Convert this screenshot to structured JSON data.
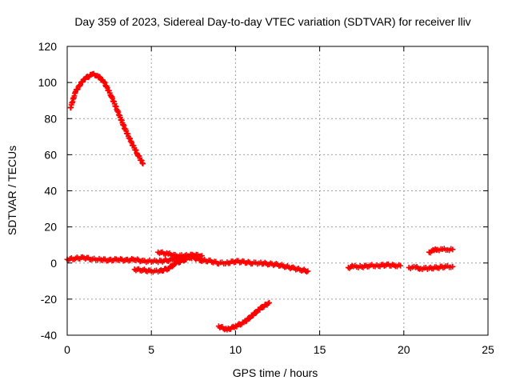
{
  "chart_data": {
    "type": "scatter",
    "title": "Day 359 of 2023, Sidereal Day-to-day VTEC variation (SDTVAR) for receiver lliv",
    "xlabel": "GPS time / hours",
    "ylabel": "SDTVAR / TECUs",
    "xlim": [
      0,
      25
    ],
    "ylim": [
      -40,
      120
    ],
    "xticks": [
      "0",
      "5",
      "10",
      "15",
      "20",
      "25"
    ],
    "yticks": [
      "-40",
      "-20",
      "0",
      "20",
      "40",
      "60",
      "80",
      "100",
      "120"
    ],
    "grid": true,
    "marker": "plus",
    "color": "#ff0000",
    "series": [
      {
        "x": [
          0.2,
          0.5,
          1.0,
          1.5,
          1.8,
          2.2,
          2.6,
          3.0,
          3.4,
          3.8,
          4.2,
          4.5
        ],
        "y": [
          86,
          95,
          102,
          104.5,
          104,
          100,
          93,
          84,
          75,
          67,
          60,
          55
        ]
      },
      {
        "x": [
          0.0,
          0.5,
          1.0,
          1.5,
          2.0,
          2.5,
          3.0,
          3.5,
          4.0,
          4.5,
          5.0,
          5.5,
          6.0,
          6.5,
          7.0,
          7.5,
          8.0,
          8.5,
          9.0,
          9.5,
          10.0,
          10.5,
          11.0,
          11.5,
          12.0,
          12.5,
          13.0,
          13.5,
          14.0,
          14.3
        ],
        "y": [
          2,
          2.5,
          3,
          2,
          2,
          1.5,
          2,
          1.5,
          2,
          1,
          1,
          1,
          1.5,
          2.5,
          3,
          3,
          1.5,
          1,
          0,
          0,
          1,
          0.5,
          0,
          0,
          -0.5,
          -1,
          -2,
          -3,
          -4,
          -4.5
        ]
      },
      {
        "x": [
          4.0,
          4.5,
          5.0,
          5.5,
          6.0,
          6.5,
          7.0,
          7.5
        ],
        "y": [
          -3.5,
          -4,
          -4.5,
          -4.5,
          -3,
          0,
          2,
          4
        ]
      },
      {
        "x": [
          5.4,
          6.0,
          6.5,
          7.0,
          7.5,
          8.0
        ],
        "y": [
          6,
          5,
          4,
          4,
          4.5,
          4
        ]
      },
      {
        "x": [
          9.0,
          9.5,
          10.0,
          10.5,
          11.0,
          11.5,
          12.0
        ],
        "y": [
          -35,
          -37,
          -35,
          -33,
          -29,
          -25,
          -22
        ]
      },
      {
        "x": [
          16.7,
          17.0,
          17.5,
          18.0,
          18.5,
          19.0,
          19.5,
          19.8
        ],
        "y": [
          -2.5,
          -2,
          -2,
          -1.5,
          -1.5,
          -1,
          -1.5,
          -1.5
        ]
      },
      {
        "x": [
          20.3,
          20.7,
          21.0,
          21.5,
          22.0,
          22.5,
          22.9
        ],
        "y": [
          -2.5,
          -2.5,
          -3,
          -3,
          -2.5,
          -2,
          -2
        ]
      },
      {
        "x": [
          21.5,
          21.8,
          22.0,
          22.3,
          22.6,
          22.9
        ],
        "y": [
          6,
          7,
          7.5,
          7.5,
          7.5,
          7.5
        ]
      }
    ]
  }
}
